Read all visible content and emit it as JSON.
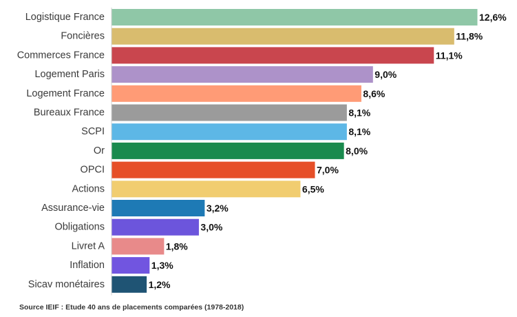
{
  "chart_data": {
    "type": "bar",
    "orientation": "horizontal",
    "categories": [
      "Logistique France",
      "Foncières",
      "Commerces France",
      "Logement Paris",
      "Logement France",
      "Bureaux France",
      "SCPI",
      "Or",
      "OPCI",
      "Actions",
      "Assurance-vie",
      "Obligations",
      "Livret A",
      "Inflation",
      "Sicav monétaires"
    ],
    "values": [
      12.6,
      11.8,
      11.1,
      9.0,
      8.6,
      8.1,
      8.1,
      8.0,
      7.0,
      6.5,
      3.2,
      3.0,
      1.8,
      1.3,
      1.2
    ],
    "value_labels": [
      "12,6%",
      "11,8%",
      "11,1%",
      "9,0%",
      "8,6%",
      "8,1%",
      "8,1%",
      "8,0%",
      "7,0%",
      "6,5%",
      "3,2%",
      "3,0%",
      "1,8%",
      "1,3%",
      "1,2%"
    ],
    "colors": [
      "#8fc7a7",
      "#d9bc6e",
      "#c9464e",
      "#ad92c9",
      "#ff9b76",
      "#9b9b9b",
      "#5db7e6",
      "#1a8a4e",
      "#e64f28",
      "#f1cd70",
      "#1e7ab5",
      "#6c55dc",
      "#e88a8a",
      "#7155e0",
      "#1f5474"
    ],
    "xlim": [
      0,
      12.6
    ],
    "grid": false,
    "legend": "none",
    "title": "",
    "xlabel": "",
    "ylabel": ""
  },
  "source": "Source IEIF : Etude 40 ans de placements comparées (1978-2018)"
}
